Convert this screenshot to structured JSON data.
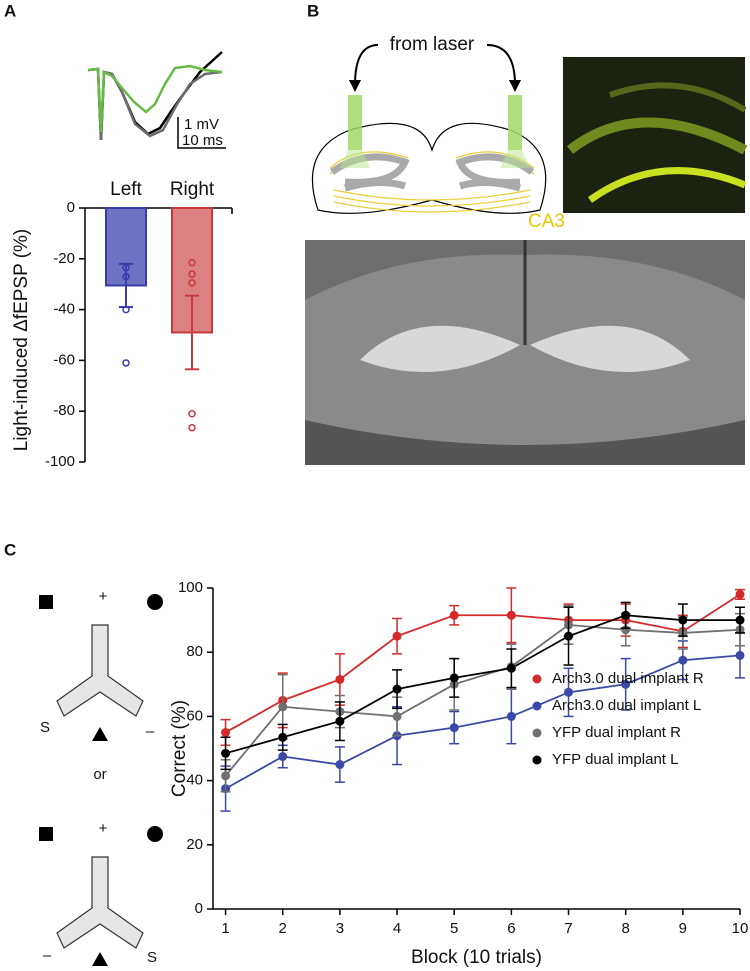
{
  "labels": {
    "panel_a": "A",
    "panel_b": "B",
    "panel_c": "C",
    "scale_mv": "1 mV",
    "scale_ms": "10 ms",
    "from_laser": "from laser",
    "ca3": "CA3",
    "maze1_plus": "+",
    "maze1_s": "S",
    "maze1_minus": "–",
    "or": "or",
    "maze2_plus": "+",
    "maze2_minus": "–",
    "maze2_s": "S"
  },
  "chart_data": [
    {
      "type": "bar",
      "ylabel": "Light-induced ΔfEPSP (%)",
      "categories": [
        "Left",
        "Right"
      ],
      "values": [
        -30.5,
        -49
      ],
      "errors": [
        8.5,
        14.5
      ],
      "colors": [
        "#7072c4",
        "#dc8284"
      ],
      "edge_colors": [
        "#3a3ca8",
        "#c83a3c"
      ],
      "points": [
        [
          -23.5,
          -27,
          -40,
          -61
        ],
        [
          -21.5,
          -26,
          -29.5,
          -81,
          -86.5
        ]
      ],
      "ylim": [
        -100,
        0
      ],
      "yticks": [
        0,
        -20,
        -40,
        -60,
        -80,
        -100
      ]
    },
    {
      "type": "line",
      "xlabel": "Block (10 trials)",
      "ylabel": "Correct (%)",
      "x": [
        1,
        2,
        3,
        4,
        5,
        6,
        7,
        8,
        9,
        10
      ],
      "xlim": [
        0.78,
        10
      ],
      "ylim": [
        0,
        100
      ],
      "xticks": [
        1,
        2,
        3,
        4,
        5,
        6,
        7,
        8,
        9,
        10
      ],
      "yticks": [
        0,
        20,
        40,
        60,
        80,
        100
      ],
      "legend": "lower right",
      "series": [
        {
          "name": "Arch3.0 dual implant R",
          "color": "#d62a2a",
          "values": [
            55,
            65,
            71.5,
            85,
            91.5,
            91.5,
            90,
            90,
            86.5,
            98
          ],
          "errors": [
            4,
            8.5,
            8,
            5.5,
            3,
            8.5,
            5,
            5,
            5,
            1.5
          ]
        },
        {
          "name": "Arch3.0 dual implant L",
          "color": "#3a48a8",
          "values": [
            37.5,
            47.5,
            45,
            54,
            56.5,
            60,
            67.5,
            70,
            77.5,
            79
          ],
          "errors": [
            7,
            3.5,
            5.5,
            9,
            5,
            8.5,
            7.5,
            8,
            6,
            7
          ]
        },
        {
          "name": "YFP dual implant R",
          "color": "#707070",
          "values": [
            41.5,
            63,
            61.5,
            60,
            70,
            75.5,
            88.5,
            87,
            86,
            87
          ],
          "errors": [
            5,
            10,
            5,
            6,
            8,
            7,
            6,
            5,
            5,
            5
          ]
        },
        {
          "name": "YFP dual implant L",
          "color": "#000000",
          "values": [
            48.5,
            53.5,
            58.5,
            68.5,
            72,
            75,
            85,
            91.5,
            90,
            90
          ],
          "errors": [
            5,
            4,
            6,
            6,
            6,
            6,
            9,
            4,
            5,
            4
          ]
        }
      ]
    }
  ]
}
